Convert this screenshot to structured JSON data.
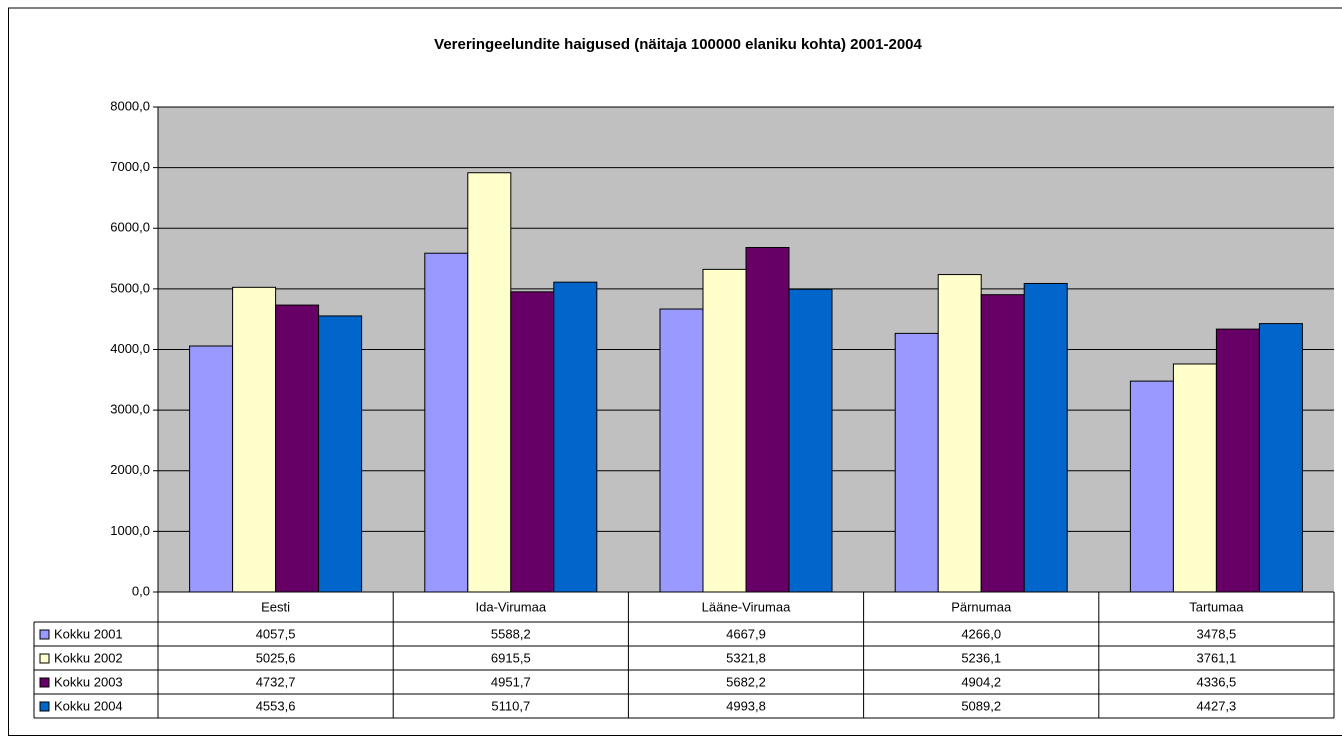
{
  "chart_data": {
    "type": "bar",
    "title": "Vereringeelundite haigused (näitaja 100000 elaniku kohta) 2001-2004",
    "categories": [
      "Eesti",
      "Ida-Virumaa",
      "Lääne-Virumaa",
      "Pärnumaa",
      "Tartumaa"
    ],
    "series": [
      {
        "name": "Kokku 2001",
        "color": "#9999ff",
        "values": [
          4057.5,
          5588.2,
          4667.9,
          4266.0,
          3478.5
        ],
        "value_labels": [
          "4057,5",
          "5588,2",
          "4667,9",
          "4266,0",
          "3478,5"
        ]
      },
      {
        "name": "Kokku 2002",
        "color": "#ffffcc",
        "values": [
          5025.6,
          6915.5,
          5321.8,
          5236.1,
          3761.1
        ],
        "value_labels": [
          "5025,6",
          "6915,5",
          "5321,8",
          "5236,1",
          "3761,1"
        ]
      },
      {
        "name": "Kokku 2003",
        "color": "#660066",
        "values": [
          4732.7,
          4951.7,
          5682.2,
          4904.2,
          4336.5
        ],
        "value_labels": [
          "4732,7",
          "4951,7",
          "5682,2",
          "4904,2",
          "4336,5"
        ]
      },
      {
        "name": "Kokku 2004",
        "color": "#0066cc",
        "values": [
          4553.6,
          5110.7,
          4993.8,
          5089.2,
          4427.3
        ],
        "value_labels": [
          "4553,6",
          "5110,7",
          "4993,8",
          "5089,2",
          "4427,3"
        ]
      }
    ],
    "ylim": [
      0,
      8000
    ],
    "yticks": [
      {
        "value": 0,
        "label": "0,0"
      },
      {
        "value": 1000,
        "label": "1000,0"
      },
      {
        "value": 2000,
        "label": "2000,0"
      },
      {
        "value": 3000,
        "label": "3000,0"
      },
      {
        "value": 4000,
        "label": "4000,0"
      },
      {
        "value": 5000,
        "label": "5000,0"
      },
      {
        "value": 6000,
        "label": "6000,0"
      },
      {
        "value": 7000,
        "label": "7000,0"
      },
      {
        "value": 8000,
        "label": "8000,0"
      }
    ],
    "grid": true
  }
}
